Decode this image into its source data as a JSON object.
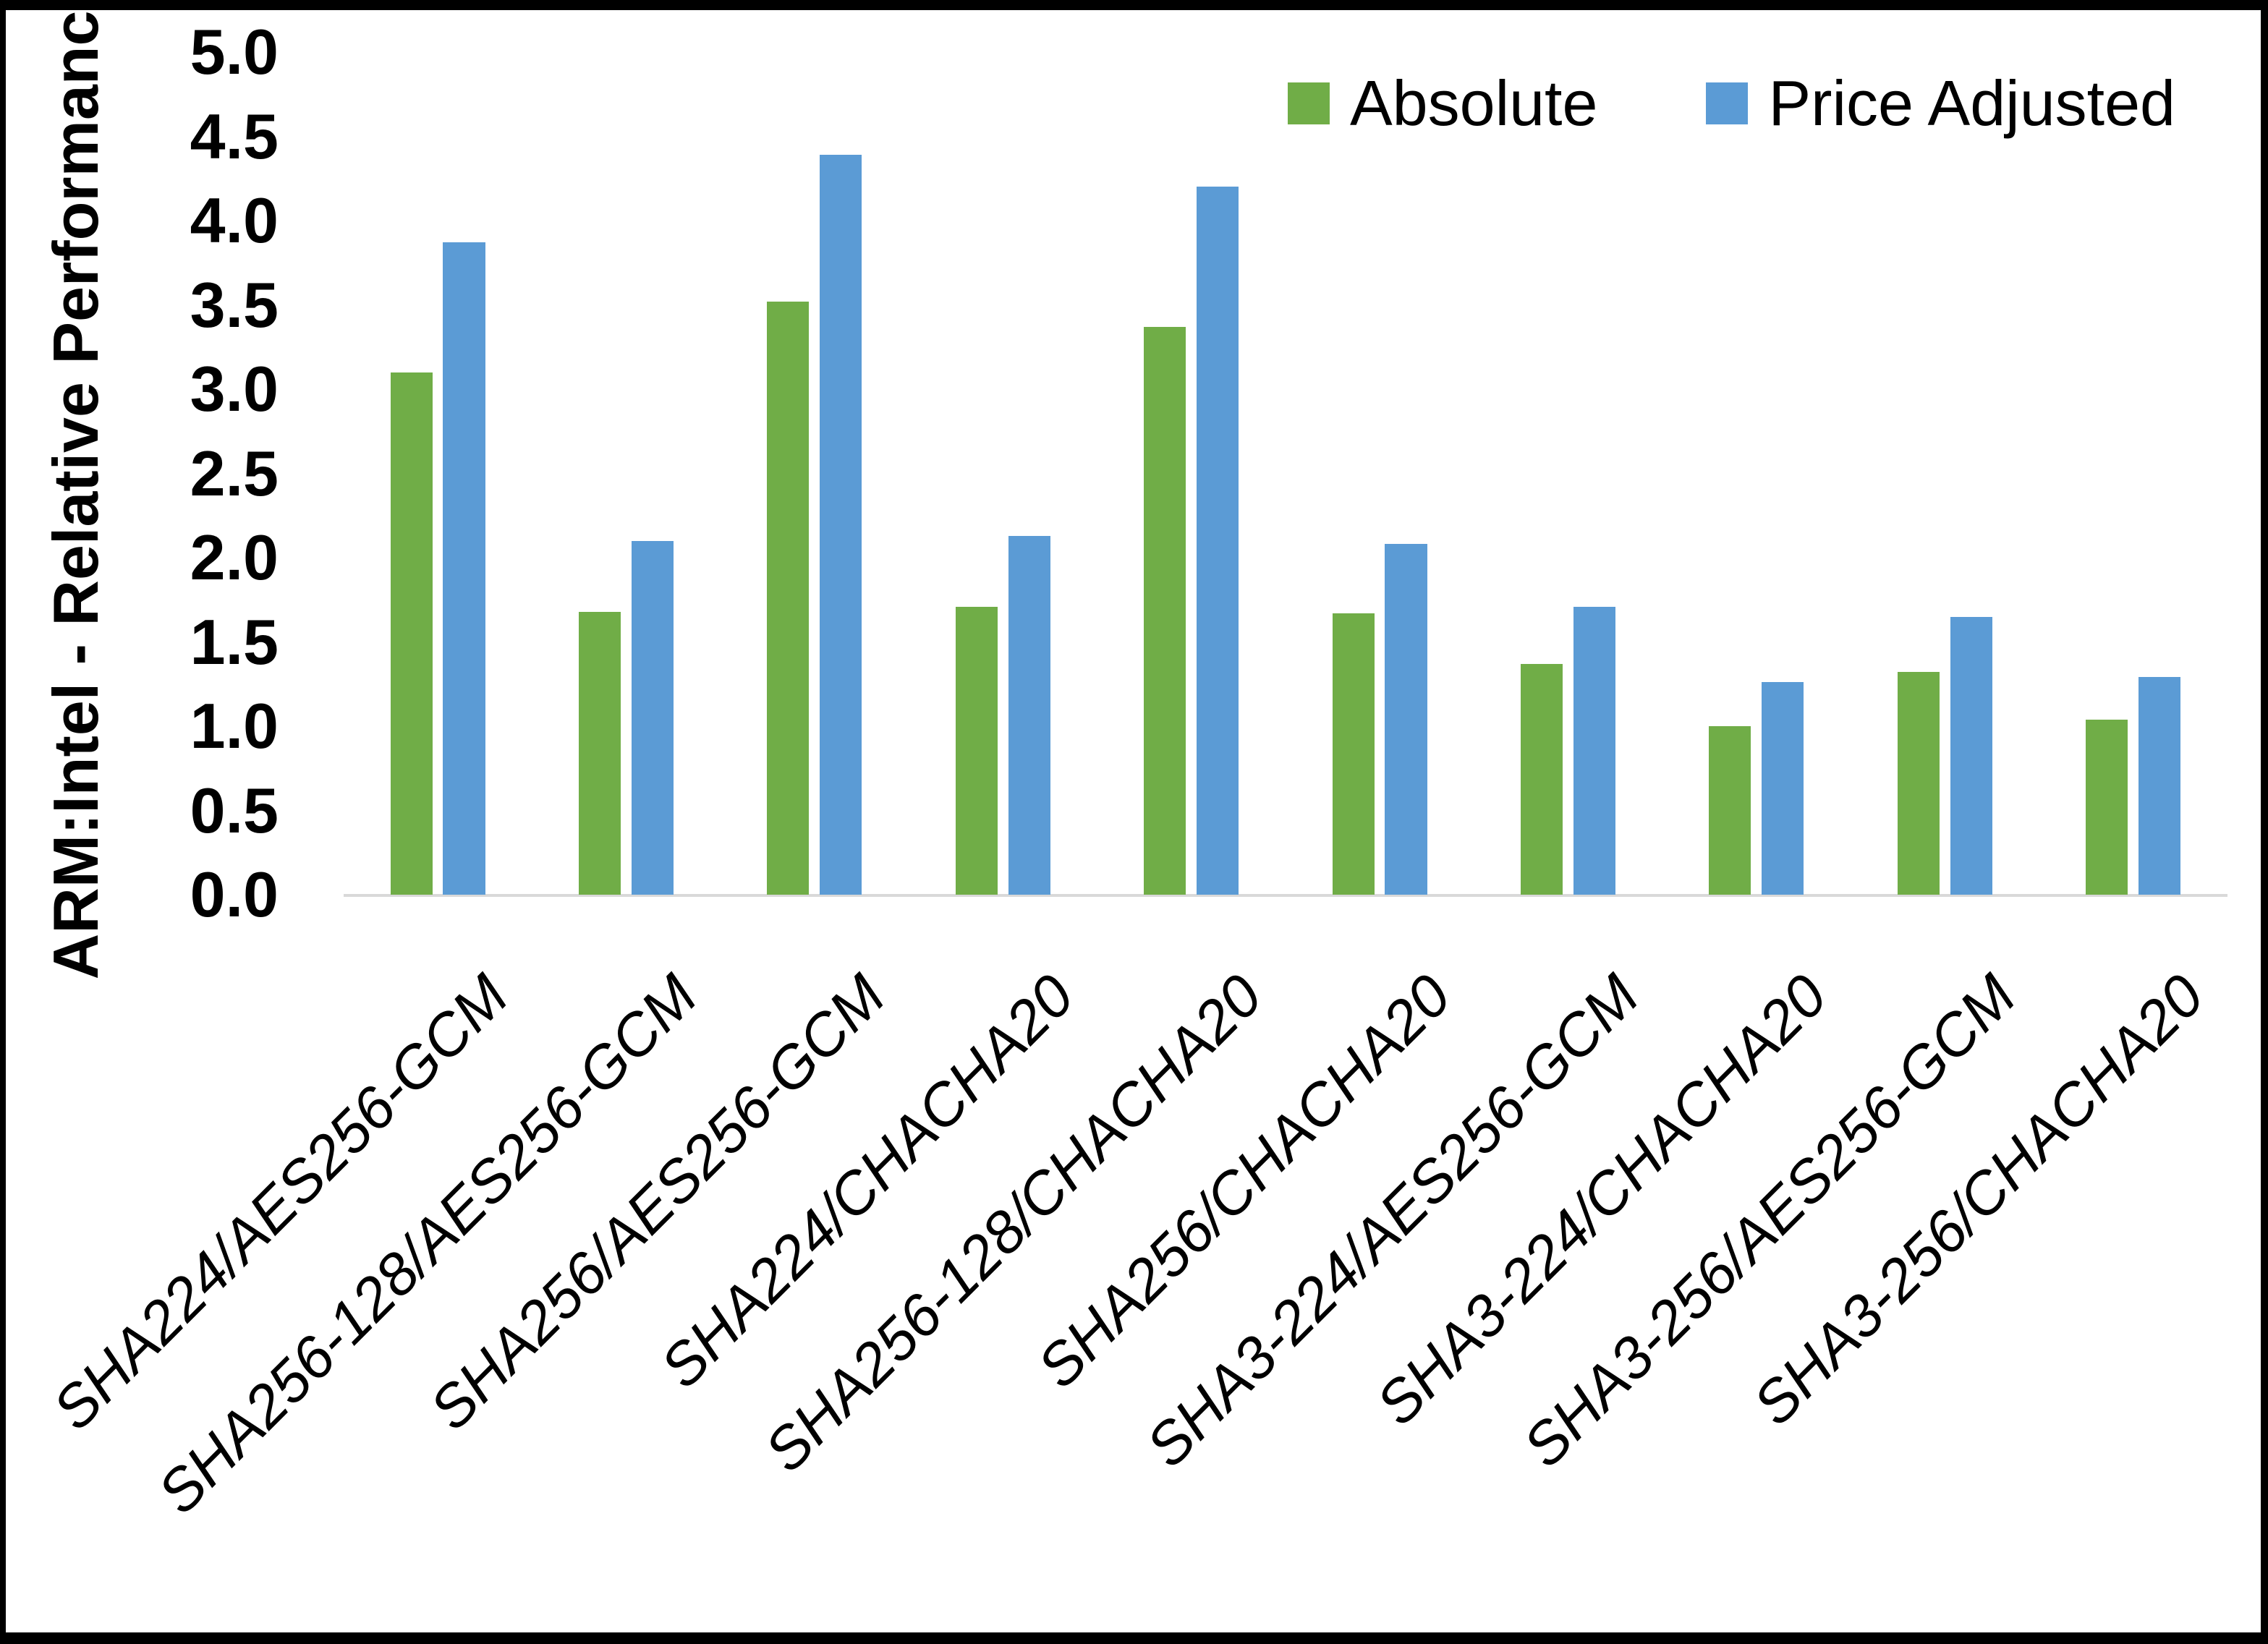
{
  "figure": {
    "background": "#ffffff",
    "frame_color": "#000000"
  },
  "chart_data": {
    "type": "bar",
    "title": "",
    "xlabel": "",
    "ylabel": "ARM:Intel - Relative Performance",
    "ylim": [
      0,
      5
    ],
    "ytick_step": 0.5,
    "ytick_format": "0.0",
    "grid": false,
    "axis_line_color": "#d9d9d9",
    "legend_position": "top-right",
    "categories": [
      "SHA224/AES256-GCM",
      "SHA256-128/AES256-GCM",
      "SHA256/AES256-GCM",
      "SHA224/CHACHA20",
      "SHA256-128/CHACHA20",
      "SHA256/CHACHA20",
      "SHA3-224/AES256-GCM",
      "SHA3-224/CHACHA20",
      "SHA3-256/AES256-GCM",
      "SHA3-256/CHACHA20"
    ],
    "series": [
      {
        "name": "Absolute",
        "color": "#70ad47",
        "values": [
          3.1,
          1.68,
          3.52,
          1.71,
          3.37,
          1.67,
          1.37,
          1.0,
          1.32,
          1.04
        ]
      },
      {
        "name": "Price Adjusted",
        "color": "#5b9bd5",
        "values": [
          3.87,
          2.1,
          4.39,
          2.13,
          4.2,
          2.08,
          1.71,
          1.26,
          1.65,
          1.29
        ]
      }
    ]
  }
}
